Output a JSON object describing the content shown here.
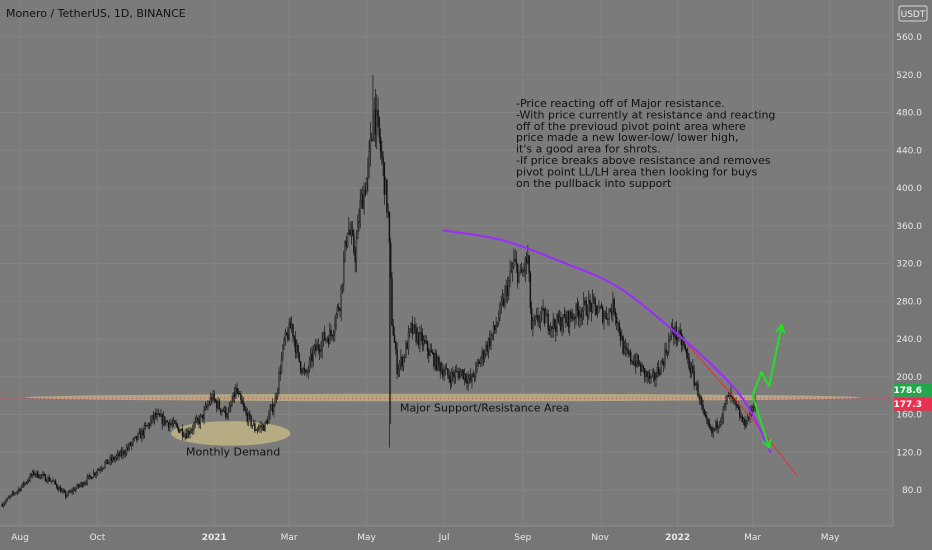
{
  "title": "Monero / TetherUS, 1D, BINANCE",
  "currency_label": "USDT",
  "chart_data": {
    "type": "candlestick",
    "symbol": "Monero / TetherUS",
    "interval": "1D",
    "exchange": "BINANCE",
    "ylim": [
      60,
      570
    ],
    "y_ticks": [
      560,
      520,
      480,
      440,
      400,
      360,
      320,
      280,
      240,
      200,
      160,
      120,
      80
    ],
    "y_tick_labels": [
      "560.0",
      "520.0",
      "480.0",
      "440.0",
      "400.0",
      "360.0",
      "320.0",
      "280.0",
      "240.0",
      "200.0",
      "160.0",
      "120.0",
      "80.0"
    ],
    "x_ticks": [
      {
        "label": "Aug",
        "date": "2020-08-01",
        "major": false
      },
      {
        "label": "Oct",
        "date": "2020-10-01",
        "major": false
      },
      {
        "label": "2021",
        "date": "2021-01-01",
        "major": true
      },
      {
        "label": "Mar",
        "date": "2021-03-01",
        "major": false
      },
      {
        "label": "May",
        "date": "2021-05-01",
        "major": false
      },
      {
        "label": "Jul",
        "date": "2021-07-01",
        "major": false
      },
      {
        "label": "Sep",
        "date": "2021-09-01",
        "major": false
      },
      {
        "label": "Nov",
        "date": "2021-11-01",
        "major": false
      },
      {
        "label": "2022",
        "date": "2022-01-01",
        "major": true
      },
      {
        "label": "Mar",
        "date": "2022-03-01",
        "major": false
      },
      {
        "label": "May",
        "date": "2022-05-01",
        "major": false
      }
    ],
    "price_path": [
      [
        "2020-07-18",
        65
      ],
      [
        "2020-08-01",
        82
      ],
      [
        "2020-08-12",
        98
      ],
      [
        "2020-08-26",
        90
      ],
      [
        "2020-09-06",
        74
      ],
      [
        "2020-09-22",
        90
      ],
      [
        "2020-10-05",
        106
      ],
      [
        "2020-10-20",
        118
      ],
      [
        "2020-11-05",
        140
      ],
      [
        "2020-11-15",
        158
      ],
      [
        "2020-11-28",
        150
      ],
      [
        "2020-12-10",
        140
      ],
      [
        "2020-12-22",
        156
      ],
      [
        "2020-12-30",
        178
      ],
      [
        "2021-01-05",
        168
      ],
      [
        "2021-01-12",
        160
      ],
      [
        "2021-01-18",
        185
      ],
      [
        "2021-01-26",
        160
      ],
      [
        "2021-02-02",
        145
      ],
      [
        "2021-02-10",
        148
      ],
      [
        "2021-02-18",
        175
      ],
      [
        "2021-02-25",
        235
      ],
      [
        "2021-03-03",
        255
      ],
      [
        "2021-03-08",
        220
      ],
      [
        "2021-03-14",
        200
      ],
      [
        "2021-03-20",
        225
      ],
      [
        "2021-03-28",
        240
      ],
      [
        "2021-04-03",
        245
      ],
      [
        "2021-04-10",
        280
      ],
      [
        "2021-04-16",
        360
      ],
      [
        "2021-04-22",
        330
      ],
      [
        "2021-04-26",
        380
      ],
      [
        "2021-05-02",
        415
      ],
      [
        "2021-05-07",
        480
      ],
      [
        "2021-05-10",
        460
      ],
      [
        "2021-05-14",
        420
      ],
      [
        "2021-05-18",
        370
      ],
      [
        "2021-05-21",
        260
      ],
      [
        "2021-05-25",
        210
      ],
      [
        "2021-05-30",
        220
      ],
      [
        "2021-06-05",
        250
      ],
      [
        "2021-06-15",
        235
      ],
      [
        "2021-06-25",
        215
      ],
      [
        "2021-07-05",
        200
      ],
      [
        "2021-07-15",
        205
      ],
      [
        "2021-07-22",
        195
      ],
      [
        "2021-08-01",
        225
      ],
      [
        "2021-08-10",
        250
      ],
      [
        "2021-08-18",
        285
      ],
      [
        "2021-08-25",
        320
      ],
      [
        "2021-08-30",
        305
      ],
      [
        "2021-09-05",
        325
      ],
      [
        "2021-09-08",
        250
      ],
      [
        "2021-09-15",
        265
      ],
      [
        "2021-09-25",
        255
      ],
      [
        "2021-10-05",
        260
      ],
      [
        "2021-10-15",
        270
      ],
      [
        "2021-10-25",
        275
      ],
      [
        "2021-11-05",
        265
      ],
      [
        "2021-11-12",
        275
      ],
      [
        "2021-11-20",
        225
      ],
      [
        "2021-11-30",
        215
      ],
      [
        "2021-12-05",
        205
      ],
      [
        "2021-12-12",
        195
      ],
      [
        "2021-12-20",
        215
      ],
      [
        "2021-12-28",
        250
      ],
      [
        "2022-01-05",
        235
      ],
      [
        "2022-01-12",
        205
      ],
      [
        "2022-01-18",
        180
      ],
      [
        "2022-01-22",
        155
      ],
      [
        "2022-01-28",
        140
      ],
      [
        "2022-02-05",
        160
      ],
      [
        "2022-02-10",
        180
      ],
      [
        "2022-02-15",
        170
      ],
      [
        "2022-02-22",
        150
      ],
      [
        "2022-02-27",
        160
      ],
      [
        "2022-03-03",
        177
      ]
    ],
    "wick_highs": [
      [
        "2021-05-06",
        520
      ],
      [
        "2021-05-08",
        505
      ],
      [
        "2021-05-04",
        470
      ]
    ],
    "wick_lows": [
      [
        "2021-05-19",
        125
      ],
      [
        "2021-05-20",
        150
      ]
    ],
    "current_price": {
      "value": 177.3,
      "label": "177.3",
      "color": "#e8314f"
    },
    "resistance_price": {
      "value": 178.6,
      "label": "178.6",
      "color": "#22a84a"
    },
    "curve_purple": {
      "color": "#9c2bff",
      "points": [
        [
          "2021-07-01",
          355
        ],
        [
          "2021-08-15",
          345
        ],
        [
          "2021-10-01",
          322
        ],
        [
          "2021-11-15",
          295
        ],
        [
          "2022-01-01",
          245
        ],
        [
          "2022-02-10",
          195
        ],
        [
          "2022-03-01",
          160
        ],
        [
          "2022-03-15",
          120
        ]
      ]
    },
    "curve_red": {
      "color": "#e0303a",
      "points": [
        [
          "2022-01-05",
          240
        ],
        [
          "2022-02-10",
          185
        ],
        [
          "2022-03-10",
          140
        ],
        [
          "2022-04-05",
          95
        ]
      ]
    },
    "projection_up": {
      "color": "#22e022",
      "points": [
        [
          "2022-03-01",
          180
        ],
        [
          "2022-03-08",
          205
        ],
        [
          "2022-03-14",
          190
        ],
        [
          "2022-03-24",
          255
        ]
      ]
    },
    "projection_down": {
      "color": "#22e022",
      "points": [
        [
          "2022-03-01",
          180
        ],
        [
          "2022-03-14",
          125
        ]
      ]
    },
    "support_band": {
      "center": 178,
      "half_height": 4,
      "from": "2020-08-05",
      "to": "2022-05-25",
      "color": "#e6d58a",
      "label": "Major Support/Resistance Area"
    },
    "demand_zone": {
      "center": 140,
      "half_height": 13,
      "from": "2020-11-28",
      "to": "2021-03-02",
      "color": "#e6d58a",
      "label": "Monthly Demand"
    },
    "annotations": [
      "-Price reacting off of Major resistance.",
      "",
      "-With price currently at resistance and reacting",
      "off of the previoud pivot point area where",
      "price made a new lower-low/ lower high,",
      "it's a good area for shrots.",
      "",
      "-If price breaks above resistance and removes",
      "pivot point LL/LH area then looking for buys",
      "on the pullback into support"
    ]
  }
}
